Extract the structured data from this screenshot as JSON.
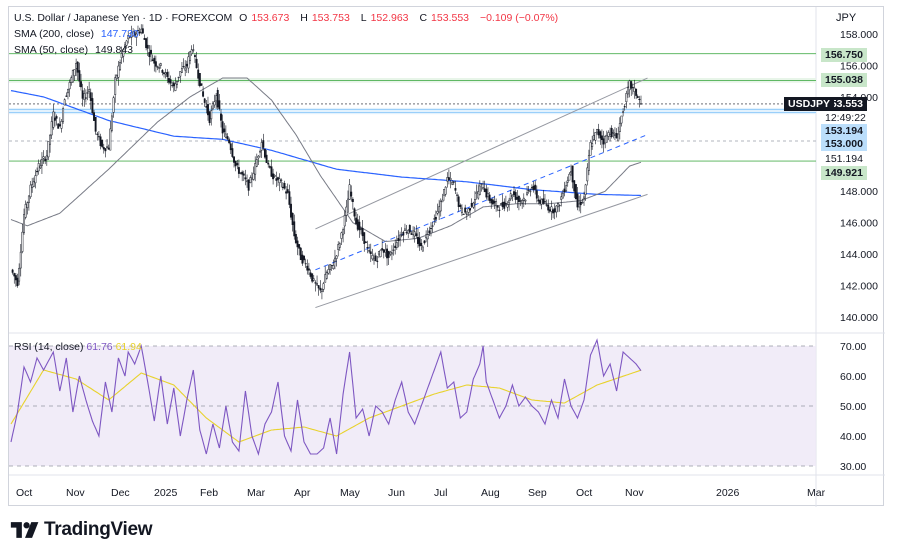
{
  "header": {
    "symbol": "U.S. Dollar / Japanese Yen · 1D · FOREXCOM",
    "ohlc": [
      {
        "k": "O",
        "v": "153.673"
      },
      {
        "k": "H",
        "v": "153.753"
      },
      {
        "k": "L",
        "v": "152.963"
      },
      {
        "k": "C",
        "v": "153.553"
      }
    ],
    "change": "−0.109 (−0.07%)",
    "sma200_label": "SMA (200, close)",
    "sma200_value": "147.730",
    "sma50_label": "SMA (50, close)",
    "sma50_value": "149.843",
    "currency": "JPY"
  },
  "price_axis": {
    "ticks": [
      "158.000",
      "156.000",
      "154.000",
      "148.000",
      "146.000",
      "144.000",
      "142.000",
      "140.000"
    ],
    "tags": [
      {
        "value": "156.750",
        "bg": "#c8e6c9",
        "fg": "#131722"
      },
      {
        "value": "155.038",
        "bg": "#c8e6c9",
        "fg": "#131722"
      },
      {
        "value": "153.553",
        "bg": "#131722",
        "fg": "#ffffff"
      },
      {
        "value": "12:49:22",
        "bg": "#ffffff",
        "fg": "#131722"
      },
      {
        "value": "153.194",
        "bg": "#bbdefb",
        "fg": "#131722"
      },
      {
        "value": "153.000",
        "bg": "#bbdefb",
        "fg": "#131722"
      },
      {
        "value": "151.194",
        "bg": "#ffffff",
        "fg": "#131722"
      },
      {
        "value": "149.921",
        "bg": "#c8e6c9",
        "fg": "#131722"
      }
    ],
    "symbol_tag": "USDJPY"
  },
  "rsi": {
    "label": "RSI (14, close)",
    "value1": "61.76",
    "value2": "61.94",
    "ticks": [
      "70.00",
      "60.00",
      "50.00",
      "40.00",
      "30.00"
    ]
  },
  "time_axis": [
    "Oct",
    "Nov",
    "Dec",
    "2025",
    "Feb",
    "Mar",
    "Apr",
    "May",
    "Jun",
    "Jul",
    "Aug",
    "Sep",
    "Oct",
    "Nov",
    "2026",
    "Mar"
  ],
  "chart_data": {
    "type": "line",
    "title": "U.S. Dollar / Japanese Yen · 1D · FOREXCOM",
    "ylim": [
      139.5,
      158.8
    ],
    "levels": [
      156.75,
      155.038,
      153.194,
      153.0,
      151.194,
      149.921
    ],
    "price_anchors": [
      [
        0,
        143.0
      ],
      [
        4,
        142.2
      ],
      [
        8,
        146.5
      ],
      [
        12,
        148.2
      ],
      [
        17,
        149.6
      ],
      [
        22,
        150.3
      ],
      [
        26,
        152.9
      ],
      [
        30,
        152.0
      ],
      [
        33,
        154.0
      ],
      [
        36,
        154.8
      ],
      [
        40,
        156.2
      ],
      [
        44,
        153.8
      ],
      [
        48,
        154.5
      ],
      [
        52,
        151.8
      ],
      [
        56,
        150.8
      ],
      [
        60,
        150.8
      ],
      [
        64,
        155.0
      ],
      [
        68,
        156.7
      ],
      [
        72,
        157.8
      ],
      [
        76,
        158.0
      ],
      [
        80,
        158.3
      ],
      [
        84,
        157.0
      ],
      [
        88,
        156.2
      ],
      [
        92,
        155.9
      ],
      [
        96,
        155.2
      ],
      [
        100,
        154.6
      ],
      [
        104,
        155.6
      ],
      [
        108,
        156.0
      ],
      [
        111,
        157.2
      ],
      [
        114,
        155.9
      ],
      [
        118,
        154.0
      ],
      [
        122,
        152.6
      ],
      [
        126,
        154.2
      ],
      [
        130,
        151.8
      ],
      [
        134,
        151.2
      ],
      [
        138,
        149.6
      ],
      [
        142,
        149.0
      ],
      [
        146,
        148.3
      ],
      [
        150,
        149.6
      ],
      [
        154,
        151.2
      ],
      [
        158,
        149.5
      ],
      [
        162,
        148.8
      ],
      [
        166,
        148.5
      ],
      [
        170,
        147.8
      ],
      [
        174,
        145.2
      ],
      [
        178,
        143.8
      ],
      [
        182,
        143.2
      ],
      [
        186,
        142.2
      ],
      [
        190,
        141.6
      ],
      [
        194,
        142.8
      ],
      [
        198,
        143.4
      ],
      [
        202,
        144.8
      ],
      [
        206,
        146.8
      ],
      [
        208,
        148.2
      ],
      [
        212,
        146.0
      ],
      [
        216,
        145.2
      ],
      [
        220,
        144.0
      ],
      [
        224,
        143.6
      ],
      [
        228,
        144.4
      ],
      [
        232,
        143.8
      ],
      [
        236,
        144.6
      ],
      [
        240,
        145.4
      ],
      [
        244,
        145.6
      ],
      [
        248,
        145.2
      ],
      [
        252,
        144.4
      ],
      [
        256,
        145.4
      ],
      [
        260,
        146.2
      ],
      [
        264,
        147.2
      ],
      [
        268,
        148.8
      ],
      [
        272,
        148.4
      ],
      [
        276,
        146.8
      ],
      [
        280,
        146.6
      ],
      [
        284,
        147.4
      ],
      [
        288,
        148.2
      ],
      [
        290,
        148.4
      ],
      [
        292,
        147.8
      ],
      [
        296,
        147.2
      ],
      [
        300,
        147.0
      ],
      [
        304,
        147.2
      ],
      [
        308,
        147.9
      ],
      [
        312,
        147.4
      ],
      [
        316,
        147.6
      ],
      [
        320,
        148.4
      ],
      [
        324,
        147.4
      ],
      [
        328,
        147.2
      ],
      [
        332,
        146.8
      ],
      [
        336,
        147.0
      ],
      [
        340,
        148.2
      ],
      [
        344,
        149.4
      ],
      [
        348,
        147.0
      ],
      [
        352,
        147.6
      ],
      [
        356,
        151.0
      ],
      [
        360,
        151.8
      ],
      [
        364,
        151.2
      ],
      [
        368,
        151.8
      ],
      [
        372,
        151.4
      ],
      [
        376,
        153.2
      ],
      [
        380,
        154.8
      ],
      [
        384,
        154.2
      ],
      [
        387,
        153.55
      ]
    ],
    "sma200_anchors": [
      [
        0,
        154.4
      ],
      [
        20,
        154.0
      ],
      [
        60,
        152.5
      ],
      [
        100,
        151.5
      ],
      [
        130,
        151.3
      ],
      [
        160,
        150.6
      ],
      [
        200,
        149.4
      ],
      [
        240,
        148.9
      ],
      [
        280,
        148.6
      ],
      [
        320,
        148.1
      ],
      [
        360,
        147.8
      ],
      [
        387,
        147.73
      ]
    ],
    "sma50_anchors": [
      [
        0,
        146.2
      ],
      [
        10,
        145.8
      ],
      [
        30,
        146.6
      ],
      [
        60,
        149.4
      ],
      [
        90,
        152.4
      ],
      [
        110,
        154.0
      ],
      [
        130,
        155.2
      ],
      [
        145,
        155.2
      ],
      [
        160,
        153.8
      ],
      [
        175,
        151.6
      ],
      [
        190,
        149.0
      ],
      [
        210,
        146.0
      ],
      [
        230,
        144.8
      ],
      [
        250,
        145.0
      ],
      [
        270,
        145.8
      ],
      [
        290,
        147.0
      ],
      [
        310,
        147.2
      ],
      [
        330,
        147.2
      ],
      [
        350,
        147.4
      ],
      [
        365,
        148.0
      ],
      [
        380,
        149.6
      ],
      [
        387,
        149.84
      ]
    ],
    "rsi_anchors": [
      [
        0,
        38
      ],
      [
        4,
        48
      ],
      [
        8,
        63
      ],
      [
        12,
        58
      ],
      [
        16,
        66
      ],
      [
        20,
        62
      ],
      [
        26,
        68
      ],
      [
        30,
        55
      ],
      [
        34,
        66
      ],
      [
        38,
        48
      ],
      [
        42,
        60
      ],
      [
        46,
        52
      ],
      [
        50,
        45
      ],
      [
        54,
        40
      ],
      [
        58,
        58
      ],
      [
        62,
        48
      ],
      [
        66,
        66
      ],
      [
        70,
        60
      ],
      [
        72,
        68
      ],
      [
        76,
        64
      ],
      [
        80,
        70
      ],
      [
        84,
        58
      ],
      [
        88,
        45
      ],
      [
        92,
        60
      ],
      [
        96,
        44
      ],
      [
        100,
        56
      ],
      [
        104,
        40
      ],
      [
        108,
        52
      ],
      [
        112,
        62
      ],
      [
        116,
        42
      ],
      [
        120,
        34
      ],
      [
        124,
        44
      ],
      [
        128,
        36
      ],
      [
        132,
        50
      ],
      [
        136,
        38
      ],
      [
        140,
        35
      ],
      [
        144,
        55
      ],
      [
        148,
        40
      ],
      [
        152,
        34
      ],
      [
        156,
        44
      ],
      [
        160,
        48
      ],
      [
        164,
        58
      ],
      [
        168,
        40
      ],
      [
        172,
        35
      ],
      [
        176,
        52
      ],
      [
        180,
        38
      ],
      [
        184,
        34
      ],
      [
        188,
        34
      ],
      [
        192,
        36
      ],
      [
        196,
        46
      ],
      [
        200,
        34
      ],
      [
        204,
        54
      ],
      [
        208,
        68
      ],
      [
        212,
        46
      ],
      [
        216,
        49
      ],
      [
        220,
        40
      ],
      [
        224,
        50
      ],
      [
        228,
        48
      ],
      [
        232,
        44
      ],
      [
        236,
        52
      ],
      [
        240,
        58
      ],
      [
        244,
        48
      ],
      [
        248,
        44
      ],
      [
        252,
        50
      ],
      [
        256,
        56
      ],
      [
        260,
        62
      ],
      [
        264,
        68
      ],
      [
        268,
        56
      ],
      [
        272,
        58
      ],
      [
        276,
        46
      ],
      [
        280,
        48
      ],
      [
        284,
        59
      ],
      [
        288,
        64
      ],
      [
        290,
        70
      ],
      [
        292,
        58
      ],
      [
        296,
        52
      ],
      [
        300,
        46
      ],
      [
        304,
        50
      ],
      [
        308,
        57
      ],
      [
        312,
        50
      ],
      [
        316,
        53
      ],
      [
        320,
        50
      ],
      [
        324,
        48
      ],
      [
        328,
        44
      ],
      [
        332,
        52
      ],
      [
        336,
        46
      ],
      [
        340,
        59
      ],
      [
        344,
        50
      ],
      [
        348,
        46
      ],
      [
        352,
        52
      ],
      [
        356,
        67
      ],
      [
        360,
        72
      ],
      [
        364,
        60
      ],
      [
        368,
        64
      ],
      [
        372,
        55
      ],
      [
        376,
        68
      ],
      [
        380,
        66
      ],
      [
        384,
        64
      ],
      [
        387,
        61.76
      ]
    ],
    "rsi_ma_anchors": [
      [
        0,
        44
      ],
      [
        20,
        62
      ],
      [
        40,
        59
      ],
      [
        60,
        52
      ],
      [
        80,
        61
      ],
      [
        100,
        57
      ],
      [
        120,
        46
      ],
      [
        140,
        38
      ],
      [
        160,
        42
      ],
      [
        180,
        43
      ],
      [
        200,
        40
      ],
      [
        220,
        46
      ],
      [
        240,
        50
      ],
      [
        260,
        54
      ],
      [
        280,
        57
      ],
      [
        300,
        56
      ],
      [
        320,
        52
      ],
      [
        340,
        51
      ],
      [
        360,
        57
      ],
      [
        387,
        61.94
      ]
    ],
    "channel": {
      "upper": [
        [
          187,
          145.6
        ],
        [
          391,
          155.2
        ]
      ],
      "lower": [
        [
          187,
          140.6
        ],
        [
          391,
          147.8
        ]
      ],
      "mid": [
        [
          187,
          143.0
        ],
        [
          391,
          151.6
        ]
      ]
    }
  }
}
